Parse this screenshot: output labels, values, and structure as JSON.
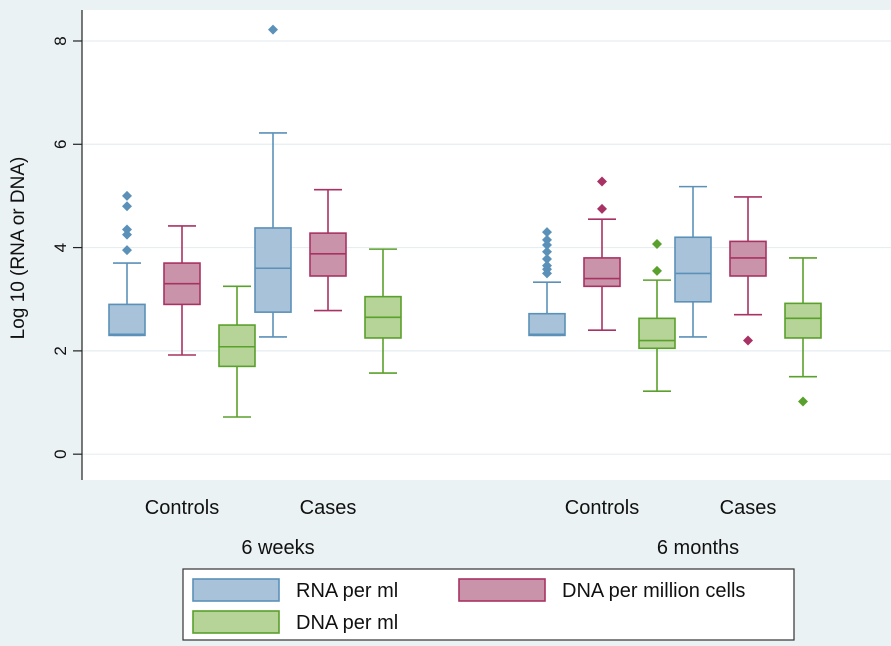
{
  "chart_data": {
    "type": "box",
    "ylabel": "Log 10 (RNA or DNA)",
    "ylim": [
      -0.5,
      8.6
    ],
    "yticks": [
      "0",
      "2",
      "4",
      "6",
      "8"
    ],
    "grid": "horizontal",
    "legend_position": "bottom",
    "groups": [
      {
        "label": "6 weeks",
        "categories": [
          "Controls",
          "Cases"
        ]
      },
      {
        "label": "6 months",
        "categories": [
          "Controls",
          "Cases"
        ]
      }
    ],
    "series": [
      {
        "name": "RNA per ml",
        "color": "#5b91b8",
        "fill": "#a7c2d9",
        "key": "rna"
      },
      {
        "name": "DNA per million cells",
        "color": "#a83263",
        "fill": "#c994aa",
        "key": "dna_cells"
      },
      {
        "name": "DNA per ml",
        "color": "#5aa02c",
        "fill": "#b6d497",
        "key": "dna_ml"
      }
    ],
    "boxes": [
      {
        "group": 0,
        "cat": 0,
        "series": 0,
        "lw": 2.3,
        "q1": 2.3,
        "med": 2.32,
        "q3": 2.9,
        "uw": 3.7,
        "outliers": [
          3.95,
          4.25,
          4.35,
          4.8,
          5.0
        ]
      },
      {
        "group": 0,
        "cat": 0,
        "series": 1,
        "lw": 1.92,
        "q1": 2.9,
        "med": 3.3,
        "q3": 3.7,
        "uw": 4.42,
        "outliers": []
      },
      {
        "group": 0,
        "cat": 0,
        "series": 2,
        "lw": 0.72,
        "q1": 1.7,
        "med": 2.08,
        "q3": 2.5,
        "uw": 3.25,
        "outliers": []
      },
      {
        "group": 0,
        "cat": 1,
        "series": 0,
        "lw": 2.27,
        "q1": 2.75,
        "med": 3.6,
        "q3": 4.38,
        "uw": 6.22,
        "outliers": [
          8.22
        ]
      },
      {
        "group": 0,
        "cat": 1,
        "series": 1,
        "lw": 2.78,
        "q1": 3.45,
        "med": 3.88,
        "q3": 4.28,
        "uw": 5.12,
        "outliers": []
      },
      {
        "group": 0,
        "cat": 1,
        "series": 2,
        "lw": 1.57,
        "q1": 2.25,
        "med": 2.65,
        "q3": 3.05,
        "uw": 3.97,
        "outliers": []
      },
      {
        "group": 1,
        "cat": 0,
        "series": 0,
        "lw": 2.3,
        "q1": 2.3,
        "med": 2.32,
        "q3": 2.72,
        "uw": 3.33,
        "outliers": [
          3.5,
          3.58,
          3.65,
          3.78,
          3.92,
          4.05,
          4.15,
          4.3
        ]
      },
      {
        "group": 1,
        "cat": 0,
        "series": 1,
        "lw": 2.4,
        "q1": 3.25,
        "med": 3.4,
        "q3": 3.8,
        "uw": 4.55,
        "outliers": [
          4.75,
          5.28
        ]
      },
      {
        "group": 1,
        "cat": 0,
        "series": 2,
        "lw": 1.22,
        "q1": 2.05,
        "med": 2.2,
        "q3": 2.63,
        "uw": 3.37,
        "outliers": [
          3.55,
          4.07
        ]
      },
      {
        "group": 1,
        "cat": 1,
        "series": 0,
        "lw": 2.27,
        "q1": 2.95,
        "med": 3.5,
        "q3": 4.2,
        "uw": 5.18,
        "outliers": []
      },
      {
        "group": 1,
        "cat": 1,
        "series": 1,
        "lw": 2.7,
        "q1": 3.45,
        "med": 3.8,
        "q3": 4.12,
        "uw": 4.98,
        "outliers": [
          2.2
        ]
      },
      {
        "group": 1,
        "cat": 1,
        "series": 2,
        "lw": 1.5,
        "q1": 2.25,
        "med": 2.63,
        "q3": 2.92,
        "uw": 3.8,
        "outliers": [
          1.02
        ]
      }
    ]
  }
}
